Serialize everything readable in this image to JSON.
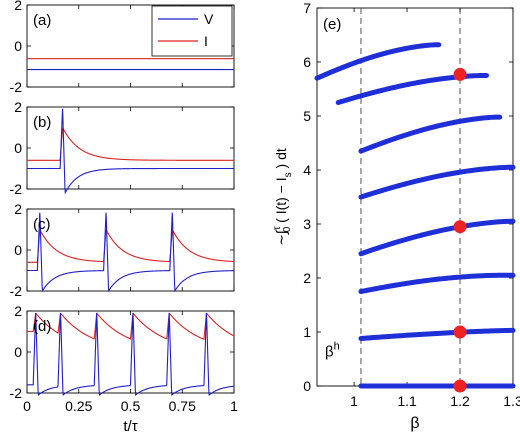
{
  "colors": {
    "V": "#1f1fcc",
    "I": "#dd2222",
    "points": "#1f2fd8",
    "markers": "#ee2222",
    "dashed": "#555555"
  },
  "legend": {
    "v_label": "V",
    "i_label": "I"
  },
  "chart_data": [
    {
      "type": "line",
      "panel_label": "(a)",
      "xlim": [
        0,
        1
      ],
      "ylim": [
        -2,
        2
      ],
      "y_ticks": [
        "2",
        "0",
        "-2"
      ],
      "legend_placement": "top-right",
      "series": [
        {
          "name": "V",
          "kind": "constant",
          "value": -1.15
        },
        {
          "name": "I",
          "kind": "constant",
          "value": -0.62
        }
      ]
    },
    {
      "type": "line",
      "panel_label": "(b)",
      "xlim": [
        0,
        1
      ],
      "ylim": [
        -2,
        2
      ],
      "y_ticks": [
        "2",
        "0",
        "-2"
      ],
      "spike_times": [
        0.16
      ],
      "series": [
        {
          "name": "V",
          "kind": "spike_train",
          "rest": -1.0,
          "peak": 2.0,
          "trough": -2.2
        },
        {
          "name": "I",
          "kind": "relaxation",
          "rest": -0.6,
          "peak": 1.0,
          "decay": 0.08,
          "start": -0.6
        }
      ]
    },
    {
      "type": "line",
      "panel_label": "(c)",
      "xlim": [
        0,
        1
      ],
      "ylim": [
        -2,
        2
      ],
      "y_ticks": [
        "2",
        "0",
        "-2"
      ],
      "spike_times": [
        0.05,
        0.37,
        0.69
      ],
      "series": [
        {
          "name": "V",
          "kind": "spike_train",
          "rest": -1.0,
          "peak": 1.9,
          "trough": -2.0
        },
        {
          "name": "I",
          "kind": "relaxation",
          "rest": -0.6,
          "peak": 1.0,
          "decay": 0.08,
          "start": -0.6
        }
      ]
    },
    {
      "type": "line",
      "panel_label": "(d)",
      "xlim": [
        0,
        1
      ],
      "ylim": [
        -2,
        2
      ],
      "y_ticks": [
        "2",
        "0",
        "-2"
      ],
      "x_ticks": [
        "0",
        "0.25",
        "0.5",
        "0.75",
        "1"
      ],
      "xlabel": "t/τ",
      "spike_times": [
        0.03,
        0.15,
        0.325,
        0.5,
        0.675,
        0.855
      ],
      "series": [
        {
          "name": "V",
          "kind": "spike_train",
          "rest": -1.6,
          "peak": 2.0,
          "trough": -2.1
        },
        {
          "name": "I",
          "kind": "relaxation",
          "rest": 0.0,
          "peak": 1.9,
          "decay": 0.15,
          "start": 1.0
        }
      ]
    },
    {
      "type": "scatter",
      "panel_label": "(e)",
      "xlim": [
        0.93,
        1.3
      ],
      "ylim": [
        0,
        7
      ],
      "x_ticks": [
        "1",
        "1.1",
        "1.2",
        "1.3"
      ],
      "y_ticks": [
        "0",
        "1",
        "2",
        "3",
        "4",
        "5",
        "6",
        "7"
      ],
      "xlabel": "β",
      "ylabel": "∼∫τ0 ( I(t) − Is ) dt",
      "ylabel_main": "∼∫",
      "ylabel_sup": "τ",
      "ylabel_sub": "0",
      "ylabel_rest": "( I(t) − I",
      "ylabel_sub2": "s",
      "ylabel_end": ") dt",
      "annotation": {
        "text": "β",
        "sup": "h",
        "x": 0.945,
        "y": 0.55
      },
      "vlines": [
        1.013,
        1.2
      ],
      "branches": [
        {
          "x": [
            1.013,
            1.3
          ],
          "y": [
            0.0,
            0.0
          ]
        },
        {
          "x": [
            1.013,
            1.3
          ],
          "y": [
            0.88,
            1.03
          ]
        },
        {
          "x": [
            1.013,
            1.3
          ],
          "y": [
            1.75,
            2.05
          ]
        },
        {
          "x": [
            1.013,
            1.3
          ],
          "y": [
            2.45,
            3.05
          ]
        },
        {
          "x": [
            1.013,
            1.3
          ],
          "y": [
            3.5,
            4.05
          ]
        },
        {
          "x": [
            1.013,
            1.275
          ],
          "y": [
            4.35,
            4.98
          ]
        },
        {
          "x": [
            0.97,
            1.25
          ],
          "y": [
            5.25,
            5.75
          ]
        },
        {
          "x": [
            0.93,
            1.16
          ],
          "y": [
            5.7,
            6.32
          ]
        }
      ],
      "red_markers": [
        {
          "x": 1.2,
          "y": 0.0
        },
        {
          "x": 1.2,
          "y": 1.0
        },
        {
          "x": 1.2,
          "y": 2.95
        },
        {
          "x": 1.2,
          "y": 5.77
        }
      ]
    }
  ]
}
